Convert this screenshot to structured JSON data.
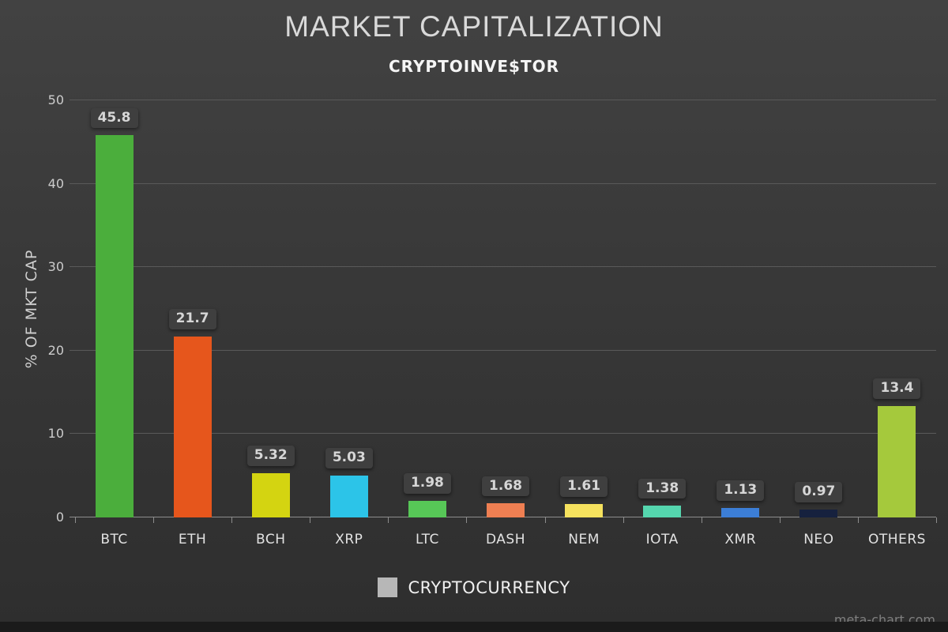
{
  "chart_data": {
    "type": "bar",
    "title": "MARKET CAPITALIZATION",
    "subtitle": "CRYPTOINVE$TOR",
    "ylabel": "% OF MKT CAP",
    "xlabel": "",
    "ylim": [
      0,
      50
    ],
    "yticks": [
      0,
      10,
      20,
      30,
      40,
      50
    ],
    "grid": true,
    "legend_position": "bottom",
    "categories": [
      "BTC",
      "ETH",
      "BCH",
      "XRP",
      "LTC",
      "DASH",
      "NEM",
      "IOTA",
      "XMR",
      "NEO",
      "OTHERS"
    ],
    "values": [
      45.8,
      21.7,
      5.32,
      5.03,
      1.98,
      1.68,
      1.61,
      1.38,
      1.13,
      0.97,
      13.4
    ],
    "value_labels": [
      "45.8",
      "21.7",
      "5.32",
      "5.03",
      "1.98",
      "1.68",
      "1.61",
      "1.38",
      "1.13",
      "0.97",
      "13.4"
    ],
    "bar_colors": [
      "#4bae3c",
      "#e6561c",
      "#d4d411",
      "#2cc4e8",
      "#57c757",
      "#ef7f52",
      "#f6e25e",
      "#55d6ae",
      "#3c7ed6",
      "#16213e",
      "#a5c93c"
    ],
    "legend": {
      "label": "CRYPTOCURRENCY",
      "color": "#b7b7b7"
    }
  },
  "watermark": "meta-chart.com"
}
